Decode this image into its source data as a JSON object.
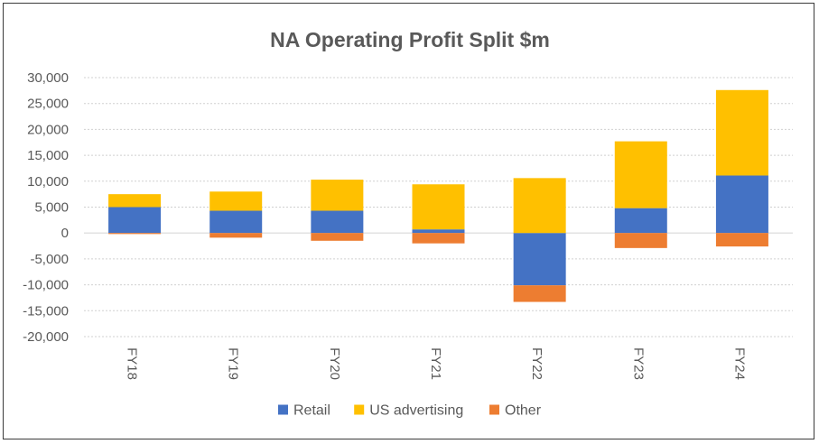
{
  "chart_data": {
    "type": "bar",
    "stacked": true,
    "title": "NA Operating Profit Split $m",
    "xlabel": "",
    "ylabel": "",
    "categories": [
      "FY18",
      "FY19",
      "FY20",
      "FY21",
      "FY22",
      "FY23",
      "FY24"
    ],
    "ylim": [
      -20000,
      30000
    ],
    "yticks": [
      30000,
      25000,
      20000,
      15000,
      10000,
      5000,
      0,
      -5000,
      -10000,
      -15000,
      -20000
    ],
    "ytick_labels": [
      "30,000",
      "25,000",
      "20,000",
      "15,000",
      "10,000",
      "5,000",
      "0",
      "-5,000",
      "-10,000",
      "-15,000",
      "-20,000"
    ],
    "grid": true,
    "legend_position": "bottom",
    "series": [
      {
        "name": "Retail",
        "color": "#4472C4",
        "values": [
          5000,
          4300,
          4300,
          700,
          -10100,
          4800,
          11100
        ]
      },
      {
        "name": "US advertising",
        "color": "#FFC000",
        "values": [
          2500,
          3700,
          6000,
          8700,
          10600,
          12900,
          16500
        ]
      },
      {
        "name": "Other",
        "color": "#ED7D31",
        "values": [
          -200,
          -900,
          -1500,
          -2000,
          -3200,
          -2900,
          -2600
        ]
      }
    ]
  }
}
